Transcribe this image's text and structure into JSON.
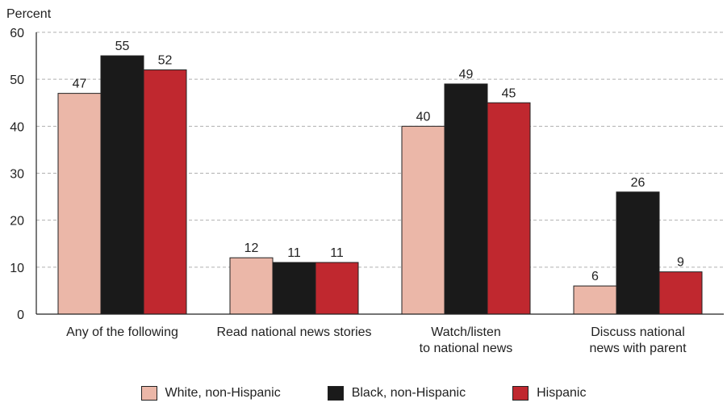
{
  "chart_data": {
    "type": "bar",
    "title": "",
    "ylabel": "Percent",
    "xlabel": "",
    "ylim": [
      0,
      60
    ],
    "yticks": [
      0,
      10,
      20,
      30,
      40,
      50,
      60
    ],
    "grid": true,
    "legend_position": "bottom",
    "categories": [
      [
        "Any of the following"
      ],
      [
        "Read national news stories"
      ],
      [
        "Watch/listen",
        "to national news"
      ],
      [
        "Discuss national",
        "news with parent"
      ]
    ],
    "series": [
      {
        "name": "White, non-Hispanic",
        "color": "#ebb7a8",
        "values": [
          47,
          12,
          40,
          6
        ]
      },
      {
        "name": "Black, non-Hispanic",
        "color": "#1a1a1a",
        "values": [
          55,
          11,
          49,
          26
        ]
      },
      {
        "name": "Hispanic",
        "color": "#c0282f",
        "values": [
          52,
          11,
          45,
          9
        ]
      }
    ]
  }
}
